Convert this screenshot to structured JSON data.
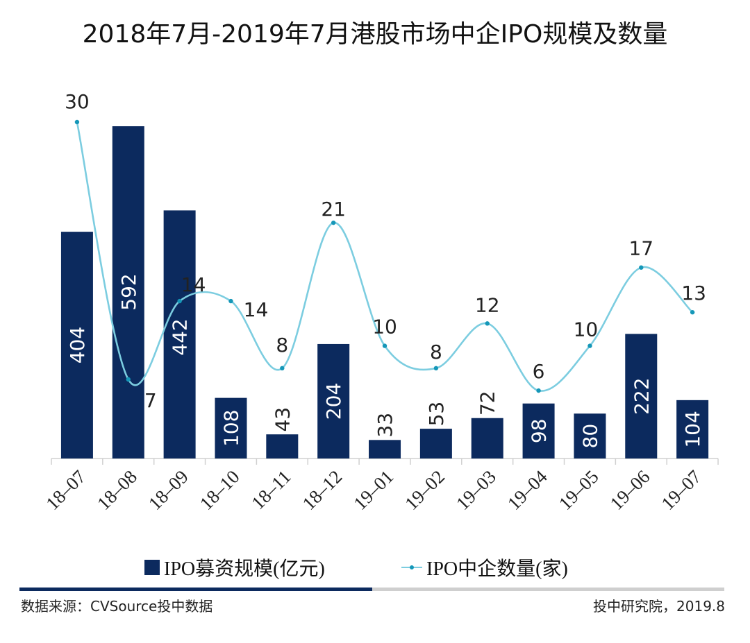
{
  "chart_data": {
    "type": "bar+line",
    "title": "2018年7月-2019年7月港股市场中企IPO规模及数量",
    "categories": [
      "18-07",
      "18-08",
      "18-09",
      "18-10",
      "18-11",
      "18-12",
      "19-01",
      "19-02",
      "19-03",
      "19-04",
      "19-05",
      "19-06",
      "19-07"
    ],
    "series": [
      {
        "name": "IPO募资规模(亿元)",
        "type": "bar",
        "axis": "primary",
        "values": [
          404,
          592,
          442,
          108,
          43,
          204,
          33,
          53,
          72,
          98,
          80,
          222,
          104
        ],
        "label_position": [
          "inside",
          "inside",
          "inside",
          "inside",
          "outside",
          "inside",
          "outside",
          "outside",
          "outside",
          "inside",
          "inside",
          "inside",
          "inside"
        ],
        "color": "#0c2a5e"
      },
      {
        "name": "IPO中企数量(家)",
        "type": "line",
        "smooth": true,
        "axis": "secondary",
        "values": [
          30,
          7,
          14,
          14,
          8,
          21,
          10,
          8,
          12,
          6,
          10,
          17,
          13
        ],
        "color": "#7ccde0",
        "marker_color": "#1597b8"
      }
    ],
    "xlabel": "",
    "ylabel": "",
    "ylim_primary": [
      0,
      592
    ],
    "ylim_secondary": [
      0,
      30
    ],
    "grid": false,
    "legend": "bottom-center",
    "xtick_rotation": -45
  },
  "legend": {
    "bar_label": "IPO募资规模(亿元)",
    "line_label": "IPO中企数量(家)"
  },
  "footer": {
    "source": "数据来源：CVSource投中数据",
    "credit": "投中研究院，2019.8"
  }
}
